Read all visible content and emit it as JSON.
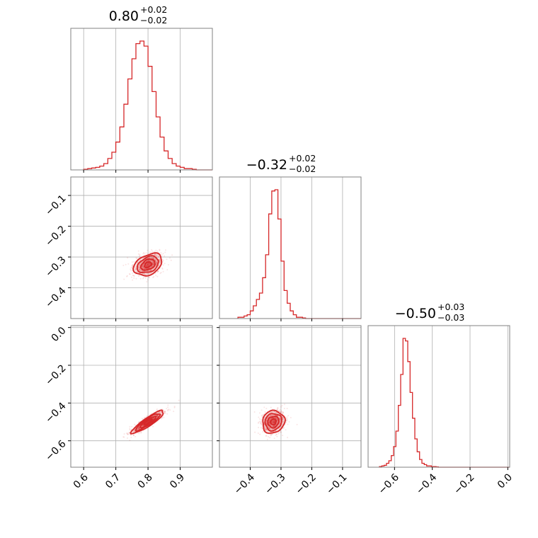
{
  "chart_data": {
    "type": "corner",
    "color": "#d62728",
    "grid": true,
    "diagonal": [
      {
        "title": "0.80",
        "err_plus": "+0.02",
        "err_minus": "−0.02",
        "range": [
          0.56,
          1.0
        ],
        "hist": {
          "start": 0.6,
          "step": 0.0125,
          "counts": [
            0.5,
            1,
            1.5,
            2,
            3,
            5,
            9,
            14,
            22,
            34,
            52,
            72,
            88,
            100,
            102,
            98,
            82,
            62,
            42,
            26,
            15,
            9,
            5,
            3,
            2,
            1,
            1,
            0.5,
            0,
            0,
            0,
            0
          ]
        }
      },
      {
        "title": "−0.32",
        "err_plus": "+0.02",
        "err_minus": "−0.02",
        "range": [
          -0.5,
          -0.04
        ],
        "hist": {
          "start": -0.44,
          "step": 0.01,
          "counts": [
            1,
            1,
            2,
            3,
            6,
            10,
            15,
            20,
            32,
            50,
            82,
            100,
            101,
            78,
            45,
            22,
            12,
            6,
            3,
            1,
            1,
            0.5,
            0,
            0,
            0,
            0,
            0,
            0,
            0,
            0,
            0,
            0,
            0,
            0,
            0,
            0,
            0,
            0,
            0,
            0,
            0,
            0,
            0,
            0,
            0,
            0
          ]
        }
      },
      {
        "title": "−0.50",
        "err_plus": "+0.03",
        "err_minus": "−0.03",
        "range": [
          -0.74,
          0.01
        ],
        "hist": {
          "start": -0.68,
          "step": 0.0125,
          "counts": [
            0.5,
            1,
            1.5,
            3,
            5,
            9,
            16,
            28,
            48,
            72,
            100,
            98,
            82,
            58,
            38,
            22,
            12,
            6,
            3,
            2,
            1,
            1,
            0.5,
            0.5,
            0.3,
            0,
            0,
            0,
            0,
            0,
            0,
            0,
            0,
            0,
            0,
            0,
            0,
            0,
            0,
            0,
            0,
            0,
            0,
            0,
            0,
            0,
            0,
            0,
            0,
            0,
            0,
            0,
            0,
            0,
            0,
            0
          ]
        }
      }
    ],
    "pairs": [
      {
        "row": 1,
        "col": 0,
        "mean": [
          0.8,
          -0.325
        ],
        "sd": [
          0.022,
          0.018
        ],
        "rho": 0.35
      },
      {
        "row": 2,
        "col": 0,
        "mean": [
          0.8,
          -0.5
        ],
        "sd": [
          0.025,
          0.03
        ],
        "rho": 0.9
      },
      {
        "row": 2,
        "col": 1,
        "mean": [
          -0.325,
          -0.5
        ],
        "sd": [
          0.018,
          0.03
        ],
        "rho": 0.1
      }
    ],
    "ticks": {
      "x0": [
        "0.6",
        "0.7",
        "0.8",
        "0.9"
      ],
      "x1": [
        "−0.4",
        "−0.3",
        "−0.2",
        "−0.1"
      ],
      "x2": [
        "−0.6",
        "−0.4",
        "−0.2",
        "0.0"
      ],
      "y1": [
        "−0.1",
        "−0.2",
        "−0.3",
        "−0.4"
      ],
      "y2": [
        "0.0",
        "−0.2",
        "−0.4",
        "−0.6"
      ]
    },
    "tick_values": {
      "x0": [
        0.6,
        0.7,
        0.8,
        0.9
      ],
      "x1": [
        -0.4,
        -0.3,
        -0.2,
        -0.1
      ],
      "x2": [
        -0.6,
        -0.4,
        -0.2,
        0.0
      ],
      "y1": [
        -0.1,
        -0.2,
        -0.3,
        -0.4
      ],
      "y2": [
        0.0,
        -0.2,
        -0.4,
        -0.6
      ]
    }
  }
}
